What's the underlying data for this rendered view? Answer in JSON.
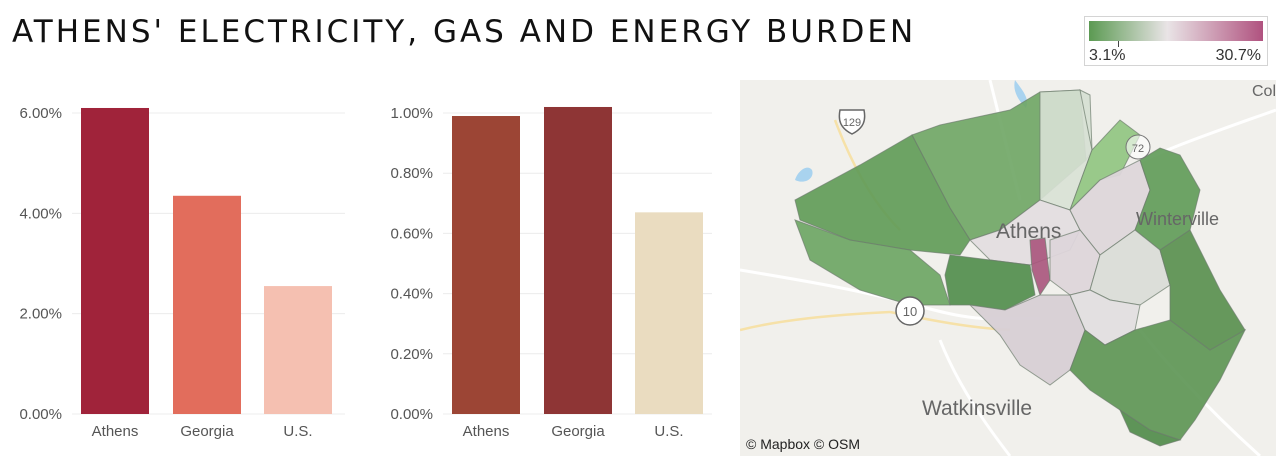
{
  "title": "ATHENS' ELECTRICITY, GAS AND ENERGY BURDEN",
  "legend": {
    "min_label": "3.1%",
    "max_label": "30.7%",
    "low_color": "#5b9a52",
    "mid_color": "#e9e4e6",
    "high_color": "#b0527f"
  },
  "chart_data": [
    {
      "type": "bar",
      "categories": [
        "Athens",
        "Georgia",
        "U.S."
      ],
      "values": [
        6.1,
        4.35,
        2.55
      ],
      "colors": [
        "#a0233a",
        "#e26d5c",
        "#f5c0b1"
      ],
      "yticks": [
        "0.00%",
        "2.00%",
        "4.00%",
        "6.00%"
      ],
      "ylim": [
        0,
        6.0
      ],
      "grid": true
    },
    {
      "type": "bar",
      "categories": [
        "Athens",
        "Georgia",
        "U.S."
      ],
      "values": [
        0.99,
        1.02,
        0.67
      ],
      "colors": [
        "#9c4535",
        "#8e3535",
        "#eadcc0"
      ],
      "yticks": [
        "0.00%",
        "0.20%",
        "0.40%",
        "0.60%",
        "0.80%",
        "1.00%"
      ],
      "ylim": [
        0,
        1.0
      ],
      "grid": true
    }
  ],
  "map": {
    "labels": {
      "route_129": "129",
      "route_72": "72",
      "route_10": "10",
      "athens": "Athens",
      "winterville": "Winterville",
      "watkinsville": "Watkinsville",
      "col": "Col"
    },
    "attribution": "© Mapbox  © OSM"
  }
}
